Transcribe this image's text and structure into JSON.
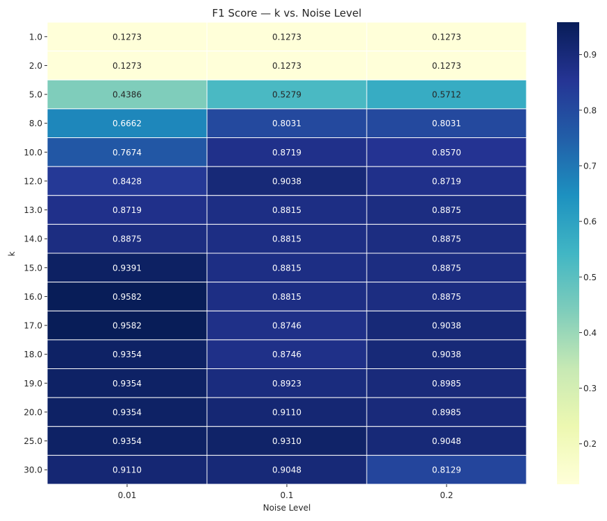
{
  "chart_data": {
    "type": "heatmap",
    "title": "F1 Score — k vs. Noise Level",
    "xlabel": "Noise Level",
    "ylabel": "k",
    "x_categories": [
      "0.01",
      "0.1",
      "0.2"
    ],
    "y_categories": [
      "1.0",
      "2.0",
      "5.0",
      "8.0",
      "10.0",
      "12.0",
      "13.0",
      "14.0",
      "15.0",
      "16.0",
      "17.0",
      "18.0",
      "19.0",
      "20.0",
      "25.0",
      "30.0"
    ],
    "values": [
      [
        0.1273,
        0.1273,
        0.1273
      ],
      [
        0.1273,
        0.1273,
        0.1273
      ],
      [
        0.4386,
        0.5279,
        0.5712
      ],
      [
        0.6662,
        0.8031,
        0.8031
      ],
      [
        0.7674,
        0.8719,
        0.857
      ],
      [
        0.8428,
        0.9038,
        0.8719
      ],
      [
        0.8719,
        0.8815,
        0.8875
      ],
      [
        0.8875,
        0.8815,
        0.8875
      ],
      [
        0.9391,
        0.8815,
        0.8875
      ],
      [
        0.9582,
        0.8815,
        0.8875
      ],
      [
        0.9582,
        0.8746,
        0.9038
      ],
      [
        0.9354,
        0.8746,
        0.9038
      ],
      [
        0.9354,
        0.8923,
        0.8985
      ],
      [
        0.9354,
        0.911,
        0.8985
      ],
      [
        0.9354,
        0.931,
        0.9048
      ],
      [
        0.911,
        0.9048,
        0.8129
      ]
    ],
    "value_labels": [
      [
        "0.1273",
        "0.1273",
        "0.1273"
      ],
      [
        "0.1273",
        "0.1273",
        "0.1273"
      ],
      [
        "0.4386",
        "0.5279",
        "0.5712"
      ],
      [
        "0.6662",
        "0.8031",
        "0.8031"
      ],
      [
        "0.7674",
        "0.8719",
        "0.8570"
      ],
      [
        "0.8428",
        "0.9038",
        "0.8719"
      ],
      [
        "0.8719",
        "0.8815",
        "0.8875"
      ],
      [
        "0.8875",
        "0.8815",
        "0.8875"
      ],
      [
        "0.9391",
        "0.8815",
        "0.8875"
      ],
      [
        "0.9582",
        "0.8815",
        "0.8875"
      ],
      [
        "0.9582",
        "0.8746",
        "0.9038"
      ],
      [
        "0.9354",
        "0.8746",
        "0.9038"
      ],
      [
        "0.9354",
        "0.8923",
        "0.8985"
      ],
      [
        "0.9354",
        "0.9110",
        "0.8985"
      ],
      [
        "0.9354",
        "0.9310",
        "0.9048"
      ],
      [
        "0.9110",
        "0.9048",
        "0.8129"
      ]
    ],
    "colormap": "YlGnBu",
    "colormap_stops": [
      "#ffffd9",
      "#edf8b1",
      "#c7e9b4",
      "#7fcdbb",
      "#41b6c4",
      "#1d91c0",
      "#225ea8",
      "#253494",
      "#081d58"
    ],
    "vmin": 0.1273,
    "vmax": 0.9582,
    "colorbar_ticks": [
      "0.2",
      "0.3",
      "0.4",
      "0.5",
      "0.6",
      "0.7",
      "0.8",
      "0.9"
    ],
    "colorbar_tick_values": [
      0.2,
      0.3,
      0.4,
      0.5,
      0.6,
      0.7,
      0.8,
      0.9
    ],
    "cell_border_color": "#ffffff"
  }
}
